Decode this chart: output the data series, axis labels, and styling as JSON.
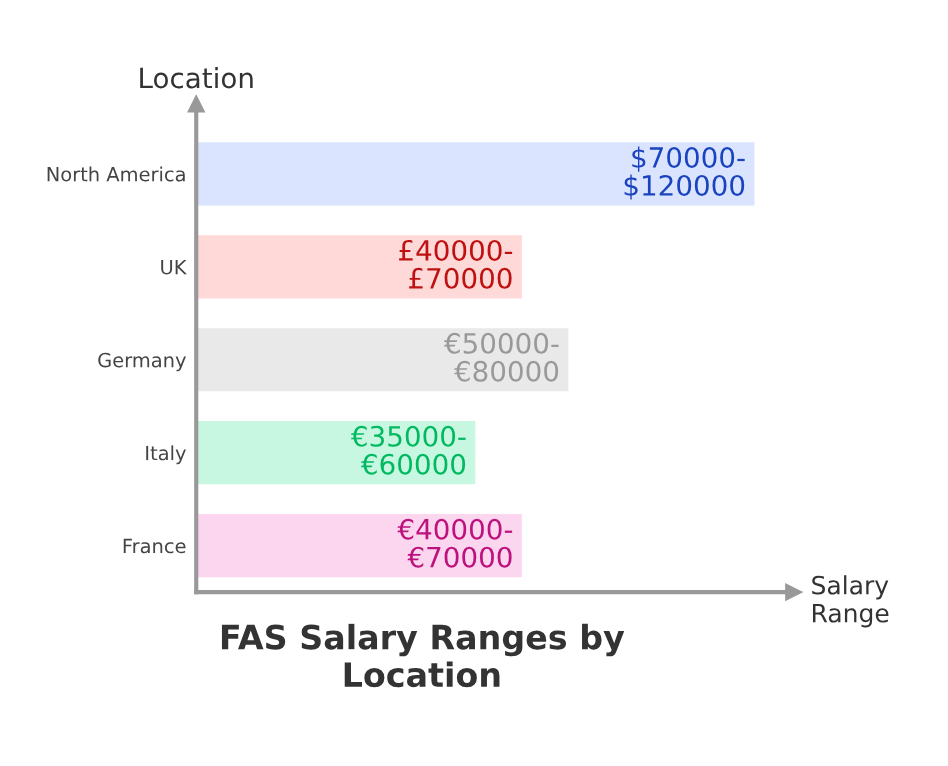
{
  "chart_data": {
    "type": "bar",
    "orientation": "horizontal",
    "title": "FAS Salary Ranges by\nLocation",
    "xlabel": "Salary\nRange",
    "ylabel": "Location",
    "categories": [
      "North America",
      "UK",
      "Germany",
      "Italy",
      "France"
    ],
    "values": [
      120000,
      70000,
      80000,
      60000,
      70000
    ],
    "colors": [
      "#dbe4ff",
      "#ffd8d8",
      "#e9e9e9",
      "#c7f7e0",
      "#fcd6ee"
    ],
    "value_labels": [
      "$70000-\n$120000",
      "£40000-\n£70000",
      "€50000-\n€80000",
      "€35000-\n€60000",
      "€40000-\n€70000"
    ],
    "grid": false,
    "legend": false
  }
}
